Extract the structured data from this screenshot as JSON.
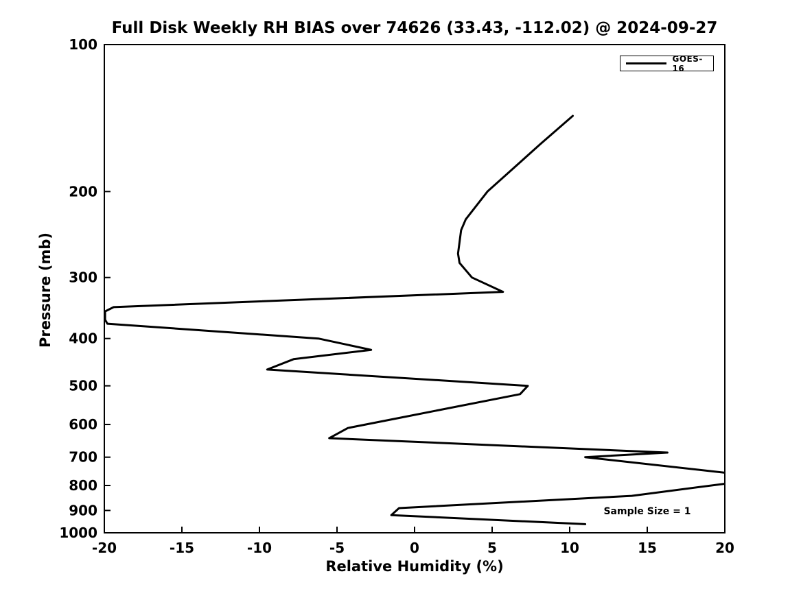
{
  "chart_data": {
    "type": "line",
    "title": "Full Disk Weekly RH BIAS over 74626 (33.43, -112.02) @ 2024-09-27",
    "xlabel": "Relative Humidity (%)",
    "ylabel": "Pressure (mb)",
    "xlim": [
      -20,
      20
    ],
    "ylim": [
      100,
      1000
    ],
    "yscale": "log",
    "y_axis_inverted_pressure": true,
    "grid": false,
    "xticks": [
      -20,
      -15,
      -10,
      -5,
      0,
      5,
      10,
      15,
      20
    ],
    "yticks": [
      100,
      200,
      300,
      400,
      500,
      600,
      700,
      800,
      900,
      1000
    ],
    "legend": {
      "position": "upper right",
      "entries": [
        {
          "label": "GOES-16",
          "color": "#000000",
          "style": "solid"
        }
      ]
    },
    "annotation": "Sample Size = 1",
    "line_color": "#000000",
    "line_width": 3,
    "clip_to_xlim": true,
    "series": [
      {
        "name": "GOES-16",
        "color": "#000000",
        "points_rh_pressure": [
          [
            10.2,
            140
          ],
          [
            8.1,
            160
          ],
          [
            4.7,
            200
          ],
          [
            3.3,
            228
          ],
          [
            3.0,
            240
          ],
          [
            2.8,
            268
          ],
          [
            2.9,
            280
          ],
          [
            3.7,
            300
          ],
          [
            5.7,
            321
          ],
          [
            -19.4,
            345
          ],
          [
            -19.95,
            352
          ],
          [
            -19.95,
            366
          ],
          [
            -19.8,
            373
          ],
          [
            -6.2,
            400
          ],
          [
            -2.8,
            422
          ],
          [
            -7.8,
            441
          ],
          [
            -9.5,
            463
          ],
          [
            7.3,
            500
          ],
          [
            6.8,
            520
          ],
          [
            -0.8,
            580
          ],
          [
            -4.3,
            610
          ],
          [
            -5.5,
            640
          ],
          [
            16.3,
            685
          ],
          [
            11.0,
            700
          ],
          [
            20.6,
            757
          ],
          [
            20.6,
            789
          ],
          [
            14.0,
            840
          ],
          [
            -1.0,
            890
          ],
          [
            -1.5,
            920
          ],
          [
            11.0,
            960
          ]
        ]
      }
    ]
  }
}
